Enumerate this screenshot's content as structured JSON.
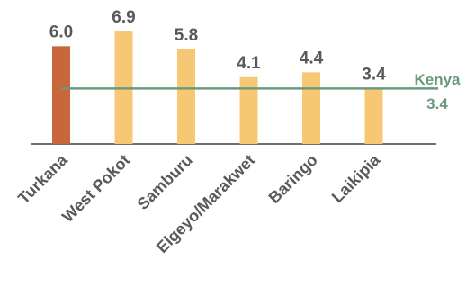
{
  "chart_data": {
    "type": "bar",
    "categories": [
      "Turkana",
      "West Pokot",
      "Samburu",
      "Elgeyo/Marakwet",
      "Baringo",
      "Laikipia"
    ],
    "values": [
      6.0,
      6.9,
      5.8,
      4.1,
      4.4,
      3.4
    ],
    "value_labels": [
      "6.0",
      "6.9",
      "5.8",
      "4.1",
      "4.4",
      "3.4"
    ],
    "bar_colors": [
      "#C8663C",
      "#F7C873",
      "#F7C873",
      "#F7C873",
      "#F7C873",
      "#F7C873"
    ],
    "reference_line": {
      "label": "Kenya",
      "value": 3.4,
      "value_label": "3.4",
      "color": "#6A9A7D"
    },
    "ylim": [
      0,
      7.4
    ],
    "grid": false,
    "title": "",
    "xlabel": "",
    "ylabel": ""
  }
}
